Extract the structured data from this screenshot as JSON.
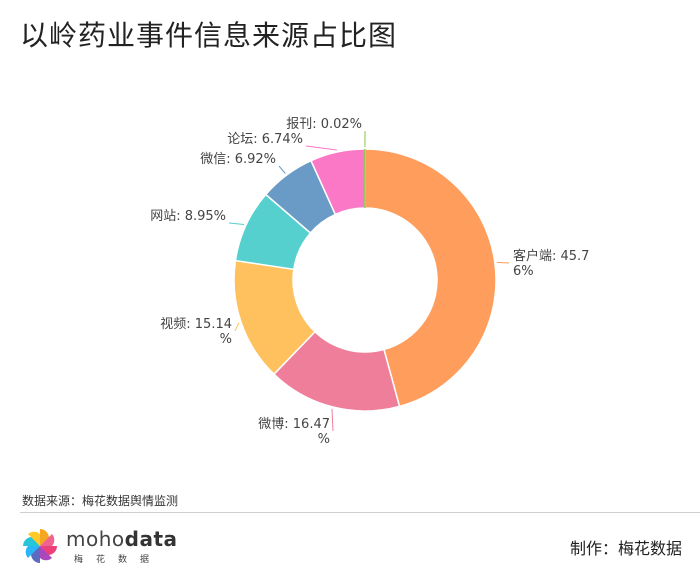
{
  "header": {
    "title": "以岭药业事件信息来源占比图"
  },
  "chart_data": {
    "type": "pie",
    "title": "以岭药业事件信息来源占比图",
    "donut": true,
    "slices": [
      {
        "name": "客户端",
        "value": 45.76,
        "color": "#FF9D5C",
        "label_lines": [
          "客户端: 45.7",
          "6%"
        ]
      },
      {
        "name": "微博",
        "value": 16.47,
        "color": "#EE7E9A",
        "label_lines": [
          "微博: 16.47",
          "%"
        ]
      },
      {
        "name": "视频",
        "value": 15.14,
        "color": "#FFC15E",
        "label_lines": [
          "视频: 15.14",
          "%"
        ]
      },
      {
        "name": "网站",
        "value": 8.95,
        "color": "#55D0CF",
        "label_lines": [
          "网站: 8.95%"
        ]
      },
      {
        "name": "微信",
        "value": 6.92,
        "color": "#6A9BC6",
        "label_lines": [
          "微信: 6.92%"
        ]
      },
      {
        "name": "论坛",
        "value": 6.74,
        "color": "#FB78C7",
        "label_lines": [
          "论坛: 6.74%"
        ]
      },
      {
        "name": "报刊",
        "value": 0.02,
        "color": "#8BC34A",
        "label_lines": [
          "报刊: 0.02%"
        ]
      }
    ]
  },
  "footer": {
    "source": "数据来源：梅花数据舆情监测",
    "brand_light": "moho",
    "brand_bold": "data",
    "brand_sub": "梅花数据",
    "maker": "制作：梅花数据"
  }
}
